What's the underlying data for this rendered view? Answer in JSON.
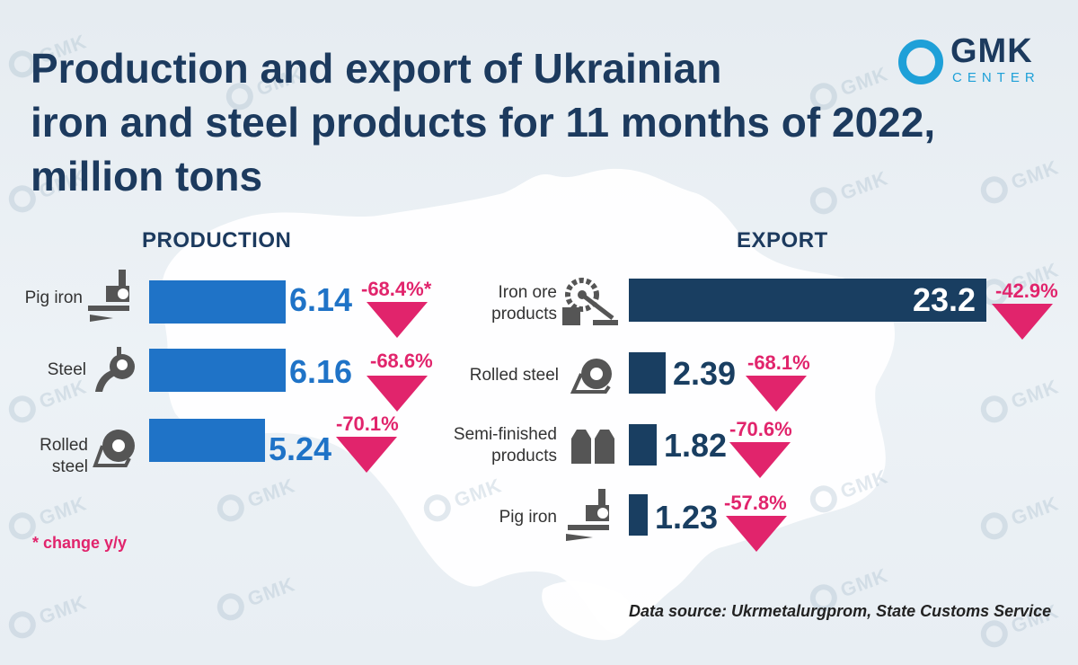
{
  "title_lines": [
    "Production and export of Ukrainian",
    "iron and steel products for 11 months of 2022,",
    "million tons"
  ],
  "logo": {
    "name": "GMK",
    "sub": "CENTER"
  },
  "footnote": "* change y/y",
  "source": "Data source: Ukrmetalurgprom, State Customs Service",
  "colors": {
    "production_bar": "#1f73c7",
    "export_bar": "#193e61",
    "decline": "#e1246c",
    "title": "#1c3a5e"
  },
  "chart_data": [
    {
      "type": "bar",
      "orientation": "horizontal",
      "title": "PRODUCTION",
      "unit": "million tons",
      "categories": [
        "Pig iron",
        "Steel",
        "Rolled steel"
      ],
      "values": [
        6.14,
        6.16,
        5.24
      ],
      "value_labels": [
        "6.14",
        "6.16",
        "5.24"
      ],
      "change_labels": [
        "-68.4%*",
        "-68.6%",
        "-70.1%"
      ],
      "change_pct": [
        -68.4,
        -68.6,
        -70.1
      ],
      "icons": [
        "pig-iron-icon",
        "steel-ladle-icon",
        "rolled-steel-coil-icon"
      ]
    },
    {
      "type": "bar",
      "orientation": "horizontal",
      "title": "EXPORT",
      "unit": "million tons",
      "categories": [
        "Iron ore products",
        "Rolled steel",
        "Semi-finished products",
        "Pig iron"
      ],
      "values": [
        23.2,
        2.39,
        1.82,
        1.23
      ],
      "value_labels": [
        "23.2",
        "2.39",
        "1.82",
        "1.23"
      ],
      "change_labels": [
        "-42.9%",
        "-68.1%",
        "-70.6%",
        "-57.8%"
      ],
      "change_pct": [
        -42.9,
        -68.1,
        -70.6,
        -57.8
      ],
      "icons": [
        "iron-ore-excavator-icon",
        "rolled-steel-coil-icon",
        "semi-finished-blocks-icon",
        "pig-iron-icon"
      ]
    }
  ]
}
